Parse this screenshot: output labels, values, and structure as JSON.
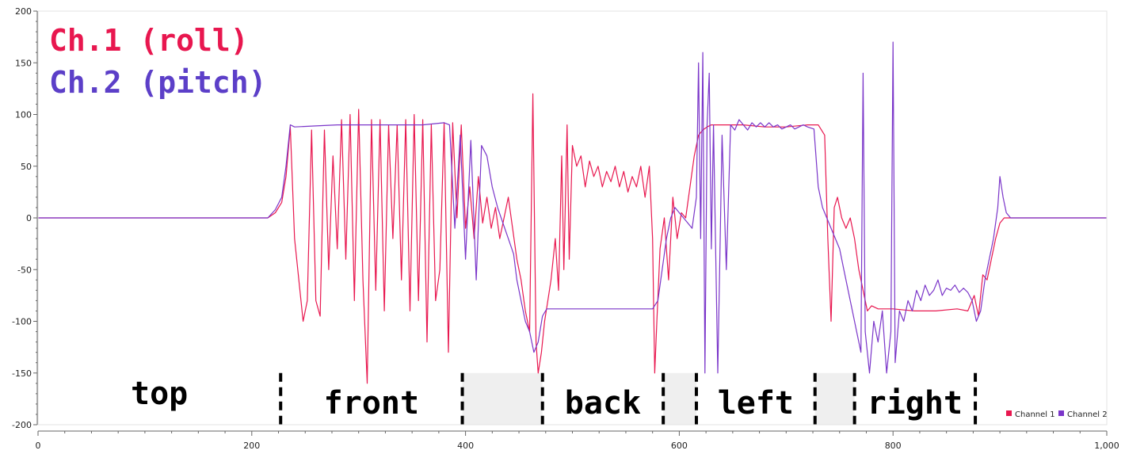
{
  "chart_data": {
    "type": "line",
    "title": "",
    "xlabel": "",
    "ylabel": "",
    "xlim": [
      0,
      1000
    ],
    "ylim": [
      -200,
      200
    ],
    "x_ticks": [
      0,
      200,
      400,
      600,
      800,
      1000
    ],
    "x_tick_labels": [
      "0",
      "200",
      "400",
      "600",
      "800",
      "1,000"
    ],
    "y_ticks": [
      -200,
      -150,
      -100,
      -50,
      0,
      50,
      100,
      150,
      200
    ],
    "y_tick_labels": [
      "-200",
      "-150",
      "-100",
      "-50",
      "0",
      "50",
      "100",
      "150",
      "200"
    ],
    "grid": false,
    "legend_position": "bottom-right",
    "annotations": {
      "ch1_label": "Ch.1 (roll)",
      "ch2_label": "Ch.2 (pitch)"
    },
    "series": [
      {
        "name": "Channel 1",
        "color": "#e8174f",
        "points": [
          [
            0,
            0
          ],
          [
            100,
            0
          ],
          [
            200,
            0
          ],
          [
            215,
            0
          ],
          [
            222,
            5
          ],
          [
            228,
            15
          ],
          [
            232,
            40
          ],
          [
            236,
            88
          ],
          [
            240,
            -20
          ],
          [
            244,
            -60
          ],
          [
            248,
            -100
          ],
          [
            252,
            -80
          ],
          [
            256,
            85
          ],
          [
            260,
            -80
          ],
          [
            264,
            -95
          ],
          [
            268,
            85
          ],
          [
            272,
            -50
          ],
          [
            276,
            60
          ],
          [
            280,
            -30
          ],
          [
            284,
            95
          ],
          [
            288,
            -40
          ],
          [
            292,
            100
          ],
          [
            296,
            -80
          ],
          [
            300,
            105
          ],
          [
            304,
            -60
          ],
          [
            308,
            -160
          ],
          [
            312,
            95
          ],
          [
            316,
            -70
          ],
          [
            320,
            95
          ],
          [
            324,
            -90
          ],
          [
            328,
            90
          ],
          [
            332,
            -20
          ],
          [
            336,
            90
          ],
          [
            340,
            -60
          ],
          [
            344,
            95
          ],
          [
            348,
            -90
          ],
          [
            352,
            100
          ],
          [
            356,
            -80
          ],
          [
            360,
            95
          ],
          [
            364,
            -120
          ],
          [
            368,
            90
          ],
          [
            372,
            -80
          ],
          [
            376,
            -50
          ],
          [
            380,
            92
          ],
          [
            384,
            -130
          ],
          [
            388,
            92
          ],
          [
            392,
            0
          ],
          [
            396,
            90
          ],
          [
            400,
            -10
          ],
          [
            404,
            30
          ],
          [
            408,
            -20
          ],
          [
            412,
            40
          ],
          [
            416,
            -5
          ],
          [
            420,
            20
          ],
          [
            424,
            -10
          ],
          [
            428,
            10
          ],
          [
            432,
            -20
          ],
          [
            436,
            0
          ],
          [
            440,
            20
          ],
          [
            444,
            -10
          ],
          [
            448,
            -40
          ],
          [
            452,
            -60
          ],
          [
            456,
            -90
          ],
          [
            460,
            -110
          ],
          [
            463,
            120
          ],
          [
            466,
            -120
          ],
          [
            468,
            -150
          ],
          [
            471,
            -130
          ],
          [
            474,
            -100
          ],
          [
            477,
            -80
          ],
          [
            480,
            -60
          ],
          [
            484,
            -20
          ],
          [
            487,
            -70
          ],
          [
            490,
            60
          ],
          [
            492,
            -50
          ],
          [
            495,
            90
          ],
          [
            497,
            -40
          ],
          [
            500,
            70
          ],
          [
            504,
            50
          ],
          [
            508,
            60
          ],
          [
            512,
            30
          ],
          [
            516,
            55
          ],
          [
            520,
            40
          ],
          [
            524,
            50
          ],
          [
            528,
            30
          ],
          [
            532,
            45
          ],
          [
            536,
            35
          ],
          [
            540,
            50
          ],
          [
            544,
            30
          ],
          [
            548,
            45
          ],
          [
            552,
            25
          ],
          [
            556,
            40
          ],
          [
            560,
            30
          ],
          [
            564,
            50
          ],
          [
            568,
            20
          ],
          [
            572,
            50
          ],
          [
            575,
            -20
          ],
          [
            577,
            -150
          ],
          [
            579,
            -100
          ],
          [
            582,
            -30
          ],
          [
            586,
            0
          ],
          [
            590,
            -60
          ],
          [
            594,
            20
          ],
          [
            598,
            -20
          ],
          [
            602,
            5
          ],
          [
            606,
            0
          ],
          [
            610,
            30
          ],
          [
            614,
            60
          ],
          [
            618,
            80
          ],
          [
            622,
            85
          ],
          [
            626,
            88
          ],
          [
            630,
            90
          ],
          [
            640,
            90
          ],
          [
            660,
            90
          ],
          [
            680,
            88
          ],
          [
            700,
            88
          ],
          [
            720,
            90
          ],
          [
            730,
            90
          ],
          [
            736,
            80
          ],
          [
            739,
            -20
          ],
          [
            742,
            -100
          ],
          [
            745,
            10
          ],
          [
            748,
            20
          ],
          [
            752,
            0
          ],
          [
            756,
            -10
          ],
          [
            760,
            0
          ],
          [
            764,
            -20
          ],
          [
            768,
            -50
          ],
          [
            772,
            -70
          ],
          [
            776,
            -90
          ],
          [
            780,
            -85
          ],
          [
            786,
            -88
          ],
          [
            800,
            -88
          ],
          [
            820,
            -90
          ],
          [
            840,
            -90
          ],
          [
            860,
            -88
          ],
          [
            870,
            -90
          ],
          [
            876,
            -75
          ],
          [
            880,
            -95
          ],
          [
            884,
            -55
          ],
          [
            888,
            -60
          ],
          [
            892,
            -40
          ],
          [
            896,
            -20
          ],
          [
            900,
            -5
          ],
          [
            904,
            0
          ],
          [
            910,
            0
          ],
          [
            950,
            0
          ],
          [
            1000,
            0
          ]
        ]
      },
      {
        "name": "Channel 2",
        "color": "#7a35c9",
        "points": [
          [
            0,
            0
          ],
          [
            100,
            0
          ],
          [
            200,
            0
          ],
          [
            215,
            0
          ],
          [
            222,
            8
          ],
          [
            228,
            20
          ],
          [
            232,
            50
          ],
          [
            236,
            90
          ],
          [
            240,
            88
          ],
          [
            260,
            89
          ],
          [
            280,
            90
          ],
          [
            300,
            90
          ],
          [
            320,
            90
          ],
          [
            340,
            90
          ],
          [
            360,
            90
          ],
          [
            380,
            92
          ],
          [
            385,
            90
          ],
          [
            390,
            -10
          ],
          [
            395,
            80
          ],
          [
            400,
            -40
          ],
          [
            405,
            75
          ],
          [
            410,
            -60
          ],
          [
            415,
            70
          ],
          [
            420,
            60
          ],
          [
            425,
            30
          ],
          [
            430,
            10
          ],
          [
            435,
            -5
          ],
          [
            440,
            -20
          ],
          [
            445,
            -35
          ],
          [
            448,
            -60
          ],
          [
            452,
            -80
          ],
          [
            456,
            -100
          ],
          [
            460,
            -110
          ],
          [
            464,
            -130
          ],
          [
            468,
            -120
          ],
          [
            472,
            -95
          ],
          [
            476,
            -88
          ],
          [
            480,
            -88
          ],
          [
            500,
            -88
          ],
          [
            520,
            -88
          ],
          [
            540,
            -88
          ],
          [
            560,
            -88
          ],
          [
            575,
            -88
          ],
          [
            580,
            -80
          ],
          [
            584,
            -50
          ],
          [
            588,
            -20
          ],
          [
            592,
            0
          ],
          [
            596,
            10
          ],
          [
            600,
            5
          ],
          [
            604,
            0
          ],
          [
            608,
            -5
          ],
          [
            612,
            -10
          ],
          [
            616,
            20
          ],
          [
            618,
            150
          ],
          [
            620,
            -20
          ],
          [
            622,
            160
          ],
          [
            624,
            -150
          ],
          [
            626,
            90
          ],
          [
            628,
            140
          ],
          [
            630,
            -30
          ],
          [
            632,
            90
          ],
          [
            636,
            -150
          ],
          [
            640,
            80
          ],
          [
            644,
            -50
          ],
          [
            648,
            90
          ],
          [
            652,
            85
          ],
          [
            656,
            95
          ],
          [
            660,
            90
          ],
          [
            664,
            85
          ],
          [
            668,
            92
          ],
          [
            672,
            88
          ],
          [
            676,
            92
          ],
          [
            680,
            88
          ],
          [
            684,
            92
          ],
          [
            688,
            88
          ],
          [
            692,
            90
          ],
          [
            696,
            86
          ],
          [
            700,
            88
          ],
          [
            704,
            90
          ],
          [
            708,
            86
          ],
          [
            712,
            88
          ],
          [
            716,
            90
          ],
          [
            720,
            88
          ],
          [
            726,
            86
          ],
          [
            730,
            30
          ],
          [
            734,
            10
          ],
          [
            738,
            0
          ],
          [
            742,
            -10
          ],
          [
            746,
            -20
          ],
          [
            750,
            -30
          ],
          [
            754,
            -50
          ],
          [
            758,
            -70
          ],
          [
            762,
            -90
          ],
          [
            766,
            -110
          ],
          [
            770,
            -130
          ],
          [
            772,
            140
          ],
          [
            774,
            -110
          ],
          [
            778,
            -150
          ],
          [
            782,
            -100
          ],
          [
            786,
            -120
          ],
          [
            790,
            -90
          ],
          [
            794,
            -150
          ],
          [
            798,
            -110
          ],
          [
            800,
            170
          ],
          [
            802,
            -140
          ],
          [
            806,
            -90
          ],
          [
            810,
            -100
          ],
          [
            814,
            -80
          ],
          [
            818,
            -90
          ],
          [
            822,
            -70
          ],
          [
            826,
            -80
          ],
          [
            830,
            -65
          ],
          [
            834,
            -75
          ],
          [
            838,
            -70
          ],
          [
            842,
            -60
          ],
          [
            846,
            -75
          ],
          [
            850,
            -68
          ],
          [
            854,
            -70
          ],
          [
            858,
            -65
          ],
          [
            862,
            -72
          ],
          [
            866,
            -68
          ],
          [
            870,
            -72
          ],
          [
            874,
            -80
          ],
          [
            878,
            -100
          ],
          [
            882,
            -90
          ],
          [
            886,
            -60
          ],
          [
            890,
            -40
          ],
          [
            894,
            -20
          ],
          [
            898,
            10
          ],
          [
            900,
            40
          ],
          [
            903,
            20
          ],
          [
            906,
            5
          ],
          [
            910,
            0
          ],
          [
            950,
            0
          ],
          [
            1000,
            0
          ]
        ]
      }
    ],
    "segments": [
      {
        "label": "top",
        "from": 0,
        "to": 227
      },
      {
        "label": "front",
        "from": 227,
        "to": 397
      },
      {
        "label": "",
        "from": 397,
        "to": 472,
        "gray": true
      },
      {
        "label": "back",
        "from": 472,
        "to": 585
      },
      {
        "label": "",
        "from": 585,
        "to": 616,
        "gray": true
      },
      {
        "label": "left",
        "from": 616,
        "to": 727
      },
      {
        "label": "",
        "from": 727,
        "to": 764,
        "gray": true
      },
      {
        "label": "right",
        "from": 764,
        "to": 877
      }
    ]
  }
}
